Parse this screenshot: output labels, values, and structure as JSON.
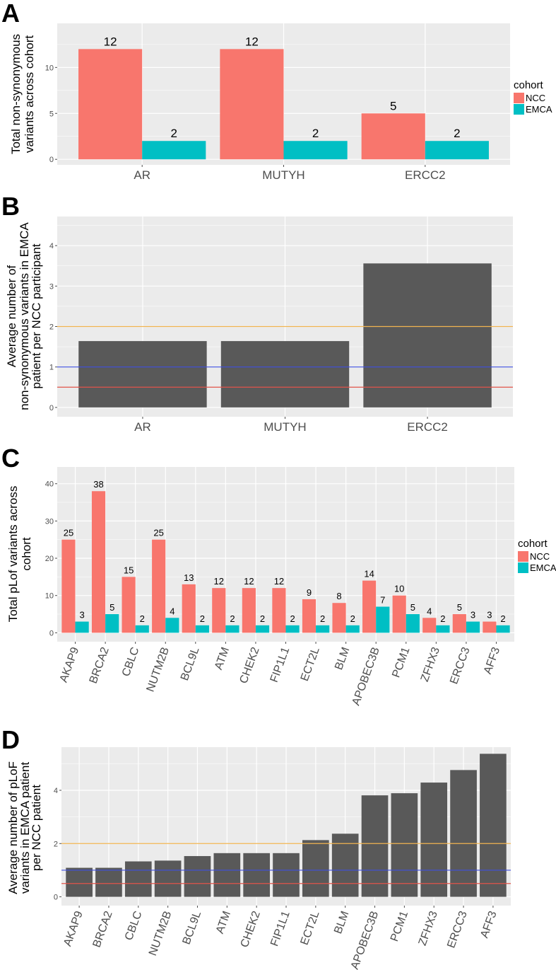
{
  "chart_data": [
    {
      "panel": "A",
      "type": "bar",
      "categories": [
        "AR",
        "MUTYH",
        "ERCC2"
      ],
      "series": [
        {
          "name": "NCC",
          "color": "#F8766D",
          "values": [
            12,
            12,
            5
          ]
        },
        {
          "name": "EMCA",
          "color": "#00BFC4",
          "values": [
            2,
            2,
            2
          ]
        }
      ],
      "data_labels": true,
      "ylabel": [
        "Total non-synonymous",
        "variants across cohort"
      ],
      "xlabel": "",
      "yticks": [
        0,
        5,
        10
      ],
      "ylim": [
        -0.6,
        14.8
      ],
      "grid": true,
      "legend": {
        "title": "cohort",
        "position": "right"
      }
    },
    {
      "panel": "B",
      "type": "bar",
      "categories": [
        "AR",
        "MUTYH",
        "ERCC2"
      ],
      "values": [
        1.64,
        1.64,
        3.56
      ],
      "bar_color": "#595959",
      "ylabel": [
        "Average number of",
        "non-synonymous variants in EMCA",
        "patient per NCC participant"
      ],
      "xlabel": "",
      "yticks": [
        0,
        1,
        2,
        3,
        4
      ],
      "ylim": [
        -0.23,
        4.72
      ],
      "grid": true,
      "hlines": [
        {
          "y": 2,
          "color": "#F0B450"
        },
        {
          "y": 1,
          "color": "#3F4FE0"
        },
        {
          "y": 0.5,
          "color": "#E0544A"
        }
      ]
    },
    {
      "panel": "C",
      "type": "bar",
      "categories": [
        "AKAP9",
        "BRCA2",
        "CBLC",
        "NUTM2B",
        "BCL9L",
        "ATM",
        "CHEK2",
        "FIP1L1",
        "ECT2L",
        "BLM",
        "APOBEC3B",
        "PCM1",
        "ZFHX3",
        "ERCC3",
        "AFF3"
      ],
      "series": [
        {
          "name": "NCC",
          "color": "#F8766D",
          "values": [
            25,
            38,
            15,
            25,
            13,
            12,
            12,
            12,
            9,
            8,
            14,
            10,
            4,
            5,
            3
          ]
        },
        {
          "name": "EMCA",
          "color": "#00BFC4",
          "values": [
            3,
            5,
            2,
            4,
            2,
            2,
            2,
            2,
            2,
            2,
            7,
            5,
            2,
            3,
            2
          ]
        }
      ],
      "data_labels": true,
      "ylabel": [
        "Total pLof variants across",
        "cohort"
      ],
      "xlabel": "",
      "yticks": [
        0,
        10,
        20,
        30,
        40
      ],
      "ylim": [
        -2.4,
        44.5
      ],
      "grid": true,
      "legend": {
        "title": "cohort",
        "position": "right"
      }
    },
    {
      "panel": "D",
      "type": "bar",
      "categories": [
        "AKAP9",
        "BRCA2",
        "CBLC",
        "NUTM2B",
        "BCL9L",
        "ATM",
        "CHEK2",
        "FIP1L1",
        "ECT2L",
        "BLM",
        "APOBEC3B",
        "PCM1",
        "ZFHX3",
        "ERCC3",
        "AFF3"
      ],
      "values": [
        1.09,
        1.09,
        1.33,
        1.36,
        1.53,
        1.64,
        1.64,
        1.64,
        2.13,
        2.37,
        3.81,
        3.89,
        4.29,
        4.76,
        5.37
      ],
      "bar_color": "#595959",
      "ylabel": [
        "Average number of pLoF",
        "variants in EMCA patient",
        "per NCC patient"
      ],
      "xlabel": "",
      "yticks": [
        0,
        2,
        4
      ],
      "ylim": [
        -0.33,
        5.62
      ],
      "grid": true,
      "hlines": [
        {
          "y": 2,
          "color": "#F0B450"
        },
        {
          "y": 1,
          "color": "#3F4FE0"
        },
        {
          "y": 0.5,
          "color": "#E0544A"
        }
      ]
    }
  ]
}
